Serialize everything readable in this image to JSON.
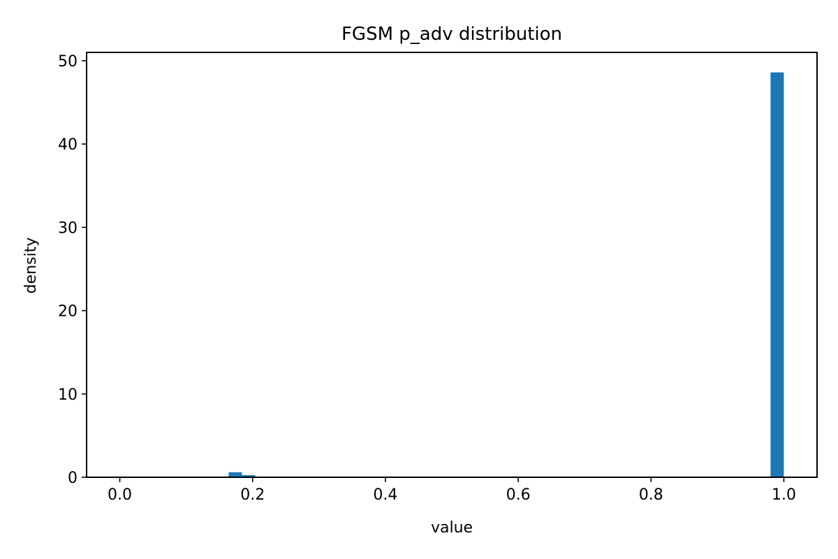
{
  "chart_data": {
    "type": "bar",
    "title": "FGSM p_adv distribution",
    "xlabel": "value",
    "ylabel": "density",
    "xlim": [
      -0.05,
      1.05
    ],
    "ylim": [
      0,
      51
    ],
    "grid": false,
    "bar_color": "#1f77b4",
    "x_ticks": [
      0.0,
      0.2,
      0.4,
      0.6,
      0.8,
      1.0
    ],
    "x_tick_labels": [
      "0.0",
      "0.2",
      "0.4",
      "0.6",
      "0.8",
      "1.0"
    ],
    "y_ticks": [
      0,
      10,
      20,
      30,
      40,
      50
    ],
    "y_tick_labels": [
      "0",
      "10",
      "20",
      "30",
      "40",
      "50"
    ],
    "bins": [
      {
        "x0": 0.164,
        "x1": 0.184,
        "value": 0.6
      },
      {
        "x0": 0.184,
        "x1": 0.204,
        "value": 0.25
      },
      {
        "x0": 0.98,
        "x1": 1.0,
        "value": 48.6
      }
    ]
  }
}
